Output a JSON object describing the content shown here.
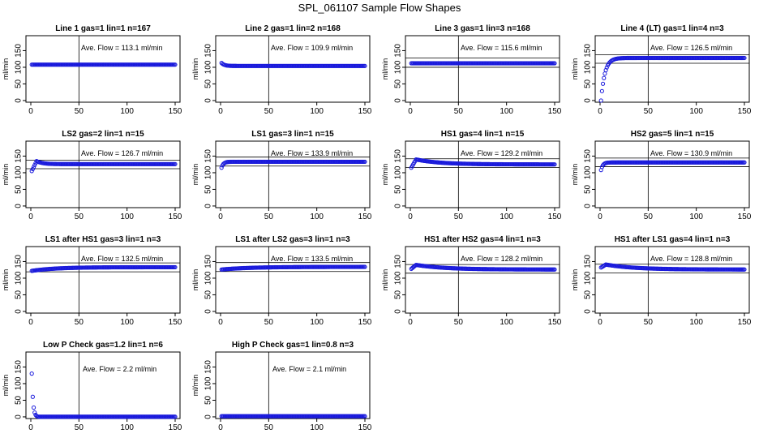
{
  "figure": {
    "title": "SPL_061107  Sample Flow Shapes"
  },
  "chart_data": [
    {
      "type": "scatter",
      "title": "Line 1 gas=1 lin=1 n=167",
      "ylabel": "ml/min",
      "annotation": "Ave. Flow =  113.1  ml/min",
      "xlim": [
        0,
        150
      ],
      "ylim": [
        -5,
        195
      ],
      "xticks": [
        0,
        50,
        100,
        150
      ],
      "yticks": [
        0,
        50,
        100,
        150
      ],
      "vline": 50,
      "hlines": [],
      "shape": {
        "kind": "flat",
        "start": 108,
        "level": 108
      }
    },
    {
      "type": "scatter",
      "title": "Line 2 gas=1 lin=2 n=168",
      "ylabel": "ml/min",
      "annotation": "Ave. Flow =  109.9  ml/min",
      "xlim": [
        0,
        150
      ],
      "ylim": [
        -5,
        195
      ],
      "xticks": [
        0,
        50,
        100,
        150
      ],
      "yticks": [
        0,
        50,
        100,
        150
      ],
      "vline": 50,
      "hlines": [],
      "shape": {
        "kind": "decay",
        "start": 113,
        "level": 104,
        "tau": 3
      }
    },
    {
      "type": "scatter",
      "title": "Line 3 gas=1 lin=3 n=168",
      "ylabel": "ml/min",
      "annotation": "Ave. Flow =  115.6  ml/min",
      "xlim": [
        0,
        150
      ],
      "ylim": [
        -5,
        195
      ],
      "xticks": [
        0,
        50,
        100,
        150
      ],
      "yticks": [
        0,
        50,
        100,
        150
      ],
      "vline": 50,
      "hlines": [
        100,
        128
      ],
      "shape": {
        "kind": "flat",
        "start": 112,
        "level": 112
      }
    },
    {
      "type": "scatter",
      "title": "Line 4 (LT) gas=1 lin=4 n=3",
      "ylabel": "ml/min",
      "annotation": "Ave. Flow =  126.5  ml/min",
      "xlim": [
        0,
        150
      ],
      "ylim": [
        -5,
        195
      ],
      "xticks": [
        0,
        50,
        100,
        150
      ],
      "yticks": [
        0,
        50,
        100,
        150
      ],
      "vline": 50,
      "hlines": [
        112,
        138
      ],
      "shape": {
        "kind": "rise",
        "start": 0,
        "level": 128,
        "tau": 4
      }
    },
    {
      "type": "scatter",
      "title": "LS2 gas=2 lin=1 n=15",
      "ylabel": "ml/min",
      "annotation": "Ave. Flow =  126.7  ml/min",
      "xlim": [
        0,
        150
      ],
      "ylim": [
        -5,
        195
      ],
      "xticks": [
        0,
        50,
        100,
        150
      ],
      "yticks": [
        0,
        50,
        100,
        150
      ],
      "vline": 50,
      "hlines": [
        112,
        138
      ],
      "shape": {
        "kind": "bump",
        "start": 105,
        "peak": 135,
        "level": 126,
        "tau": 6
      }
    },
    {
      "type": "scatter",
      "title": "LS1 gas=3 lin=1 n=15",
      "ylabel": "ml/min",
      "annotation": "Ave. Flow =  133.9  ml/min",
      "xlim": [
        0,
        150
      ],
      "ylim": [
        -5,
        195
      ],
      "xticks": [
        0,
        50,
        100,
        150
      ],
      "yticks": [
        0,
        50,
        100,
        150
      ],
      "vline": 50,
      "hlines": [
        120,
        147
      ],
      "shape": {
        "kind": "rise",
        "start": 115,
        "level": 133,
        "tau": 2
      }
    },
    {
      "type": "scatter",
      "title": "HS1 gas=4 lin=1 n=15",
      "ylabel": "ml/min",
      "annotation": "Ave. Flow =  129.2  ml/min",
      "xlim": [
        0,
        150
      ],
      "ylim": [
        -5,
        195
      ],
      "xticks": [
        0,
        50,
        100,
        150
      ],
      "yticks": [
        0,
        50,
        100,
        150
      ],
      "vline": 50,
      "hlines": [
        116,
        142
      ],
      "shape": {
        "kind": "bump",
        "start": 115,
        "peak": 140,
        "level": 125,
        "tau": 25
      }
    },
    {
      "type": "scatter",
      "title": "HS2 gas=5 lin=1 n=15",
      "ylabel": "ml/min",
      "annotation": "Ave. Flow =  130.9  ml/min",
      "xlim": [
        0,
        150
      ],
      "ylim": [
        -5,
        195
      ],
      "xticks": [
        0,
        50,
        100,
        150
      ],
      "yticks": [
        0,
        50,
        100,
        150
      ],
      "vline": 50,
      "hlines": [
        118,
        144
      ],
      "shape": {
        "kind": "rise",
        "start": 108,
        "level": 131,
        "tau": 2
      }
    },
    {
      "type": "scatter",
      "title": "LS1 after HS1 gas=3 lin=1 n=3",
      "ylabel": "ml/min",
      "annotation": "Ave. Flow =  132.5  ml/min",
      "xlim": [
        0,
        150
      ],
      "ylim": [
        -5,
        195
      ],
      "xticks": [
        0,
        50,
        100,
        150
      ],
      "yticks": [
        0,
        50,
        100,
        150
      ],
      "vline": 50,
      "hlines": [
        119,
        146
      ],
      "shape": {
        "kind": "rise",
        "start": 122,
        "level": 133,
        "tau": 25
      }
    },
    {
      "type": "scatter",
      "title": "LS1 after LS2 gas=3 lin=1 n=3",
      "ylabel": "ml/min",
      "annotation": "Ave. Flow =  133.5  ml/min",
      "xlim": [
        0,
        150
      ],
      "ylim": [
        -5,
        195
      ],
      "xticks": [
        0,
        50,
        100,
        150
      ],
      "yticks": [
        0,
        50,
        100,
        150
      ],
      "vline": 50,
      "hlines": [
        120,
        147
      ],
      "shape": {
        "kind": "rise",
        "start": 126,
        "level": 134,
        "tau": 30
      }
    },
    {
      "type": "scatter",
      "title": "HS1 after HS2 gas=4 lin=1 n=3",
      "ylabel": "ml/min",
      "annotation": "Ave. Flow =  128.2  ml/min",
      "xlim": [
        0,
        150
      ],
      "ylim": [
        -5,
        195
      ],
      "xticks": [
        0,
        50,
        100,
        150
      ],
      "yticks": [
        0,
        50,
        100,
        150
      ],
      "vline": 50,
      "hlines": [
        115,
        141
      ],
      "shape": {
        "kind": "bump",
        "start": 128,
        "peak": 140,
        "level": 126,
        "tau": 30
      }
    },
    {
      "type": "scatter",
      "title": "HS1 after LS1 gas=4 lin=1 n=3",
      "ylabel": "ml/min",
      "annotation": "Ave. Flow =  128.8  ml/min",
      "xlim": [
        0,
        150
      ],
      "ylim": [
        -5,
        195
      ],
      "xticks": [
        0,
        50,
        100,
        150
      ],
      "yticks": [
        0,
        50,
        100,
        150
      ],
      "vline": 50,
      "hlines": [
        116,
        142
      ],
      "shape": {
        "kind": "bump",
        "start": 132,
        "peak": 141,
        "level": 126,
        "tau": 30
      }
    },
    {
      "type": "scatter",
      "title": "Low P Check gas=1.2 lin=1 n=6",
      "ylabel": "ml/min",
      "annotation": "Ave. Flow =  2.2  ml/min",
      "xlim": [
        0,
        150
      ],
      "ylim": [
        -5,
        195
      ],
      "xticks": [
        0,
        50,
        100,
        150
      ],
      "yticks": [
        0,
        50,
        100,
        150
      ],
      "vline": 50,
      "hlines": [],
      "shape": {
        "kind": "decay",
        "start": 130,
        "level": 0,
        "tau": 1.3
      }
    },
    {
      "type": "scatter",
      "title": "High P Check gas=1 lin=0.8 n=3",
      "ylabel": "ml/min",
      "annotation": "Ave. Flow =  2.1  ml/min",
      "xlim": [
        0,
        150
      ],
      "ylim": [
        -5,
        195
      ],
      "xticks": [
        0,
        50,
        100,
        150
      ],
      "yticks": [
        0,
        50,
        100,
        150
      ],
      "vline": 50,
      "hlines": [],
      "shape": {
        "kind": "flat",
        "start": 2,
        "level": 2
      }
    }
  ]
}
